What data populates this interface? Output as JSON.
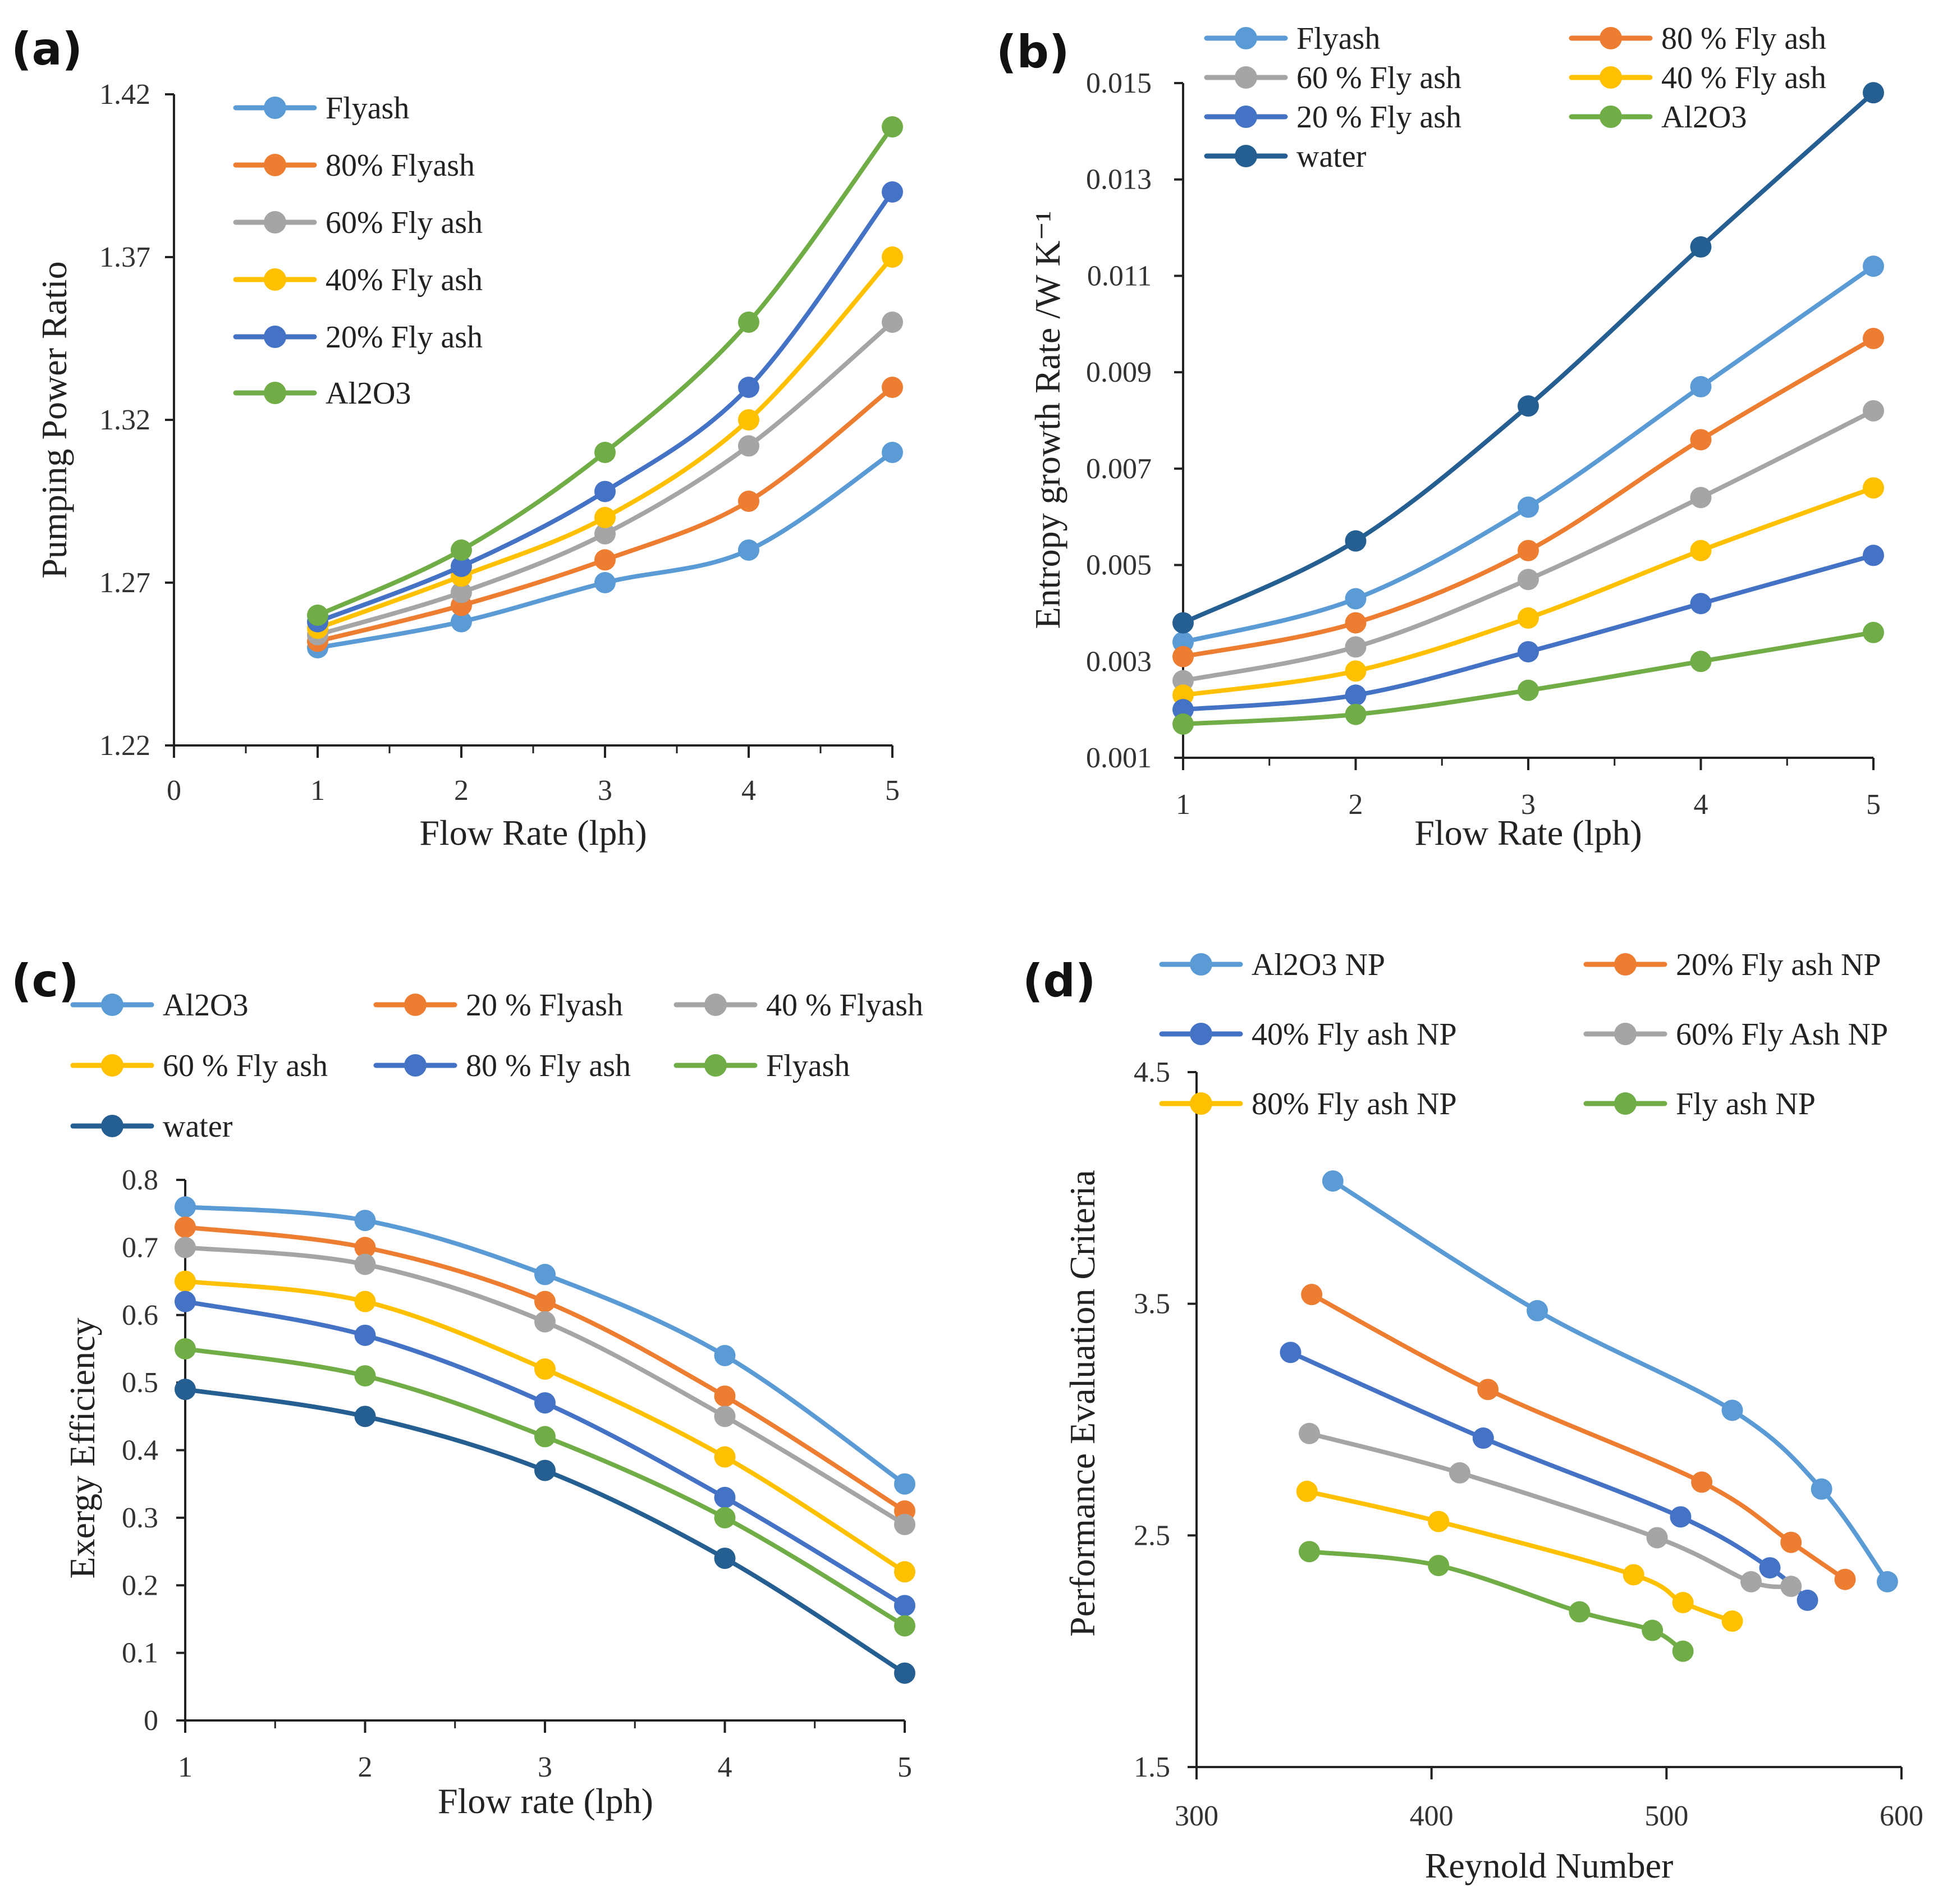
{
  "figure": {
    "colors": {
      "light_blue": "#5B9BD5",
      "orange": "#ED7D31",
      "gray": "#A5A5A5",
      "yellow": "#FFC000",
      "blue": "#4472C4",
      "green": "#70AD47",
      "dark_blue": "#255E91"
    }
  },
  "chart_data": [
    {
      "type": "line",
      "panel_label": "(a)",
      "xlabel": "Flow Rate (lph)",
      "ylabel": "Pumping Power Ratio",
      "xlim": [
        0,
        5
      ],
      "ylim": [
        1.22,
        1.42
      ],
      "x_ticks": [
        "0",
        "1",
        "2",
        "3",
        "4",
        "5"
      ],
      "y_ticks": [
        "1.42",
        "1.37",
        "1.32",
        "1.27",
        "1.22"
      ],
      "legend_position": "top-left",
      "x": [
        1,
        2,
        3,
        4,
        5
      ],
      "series": [
        {
          "name": "Flyash",
          "color": "#5B9BD5",
          "values": [
            1.25,
            1.258,
            1.27,
            1.28,
            1.31
          ]
        },
        {
          "name": "80% Flyash",
          "color": "#ED7D31",
          "values": [
            1.252,
            1.263,
            1.277,
            1.295,
            1.33
          ]
        },
        {
          "name": "60% Fly ash",
          "color": "#A5A5A5",
          "values": [
            1.254,
            1.267,
            1.285,
            1.312,
            1.35
          ]
        },
        {
          "name": "40% Fly ash",
          "color": "#FFC000",
          "values": [
            1.256,
            1.272,
            1.29,
            1.32,
            1.37
          ]
        },
        {
          "name": "20% Fly ash",
          "color": "#4472C4",
          "values": [
            1.258,
            1.275,
            1.298,
            1.33,
            1.39
          ]
        },
        {
          "name": "Al2O3",
          "color": "#70AD47",
          "values": [
            1.26,
            1.28,
            1.31,
            1.35,
            1.41
          ]
        }
      ]
    },
    {
      "type": "line",
      "panel_label": "(b)",
      "xlabel": "Flow Rate (lph)",
      "ylabel": "Entropy growth Rate /W K⁻¹",
      "xlim": [
        1,
        5
      ],
      "ylim": [
        0.001,
        0.015
      ],
      "x_ticks": [
        "1",
        "2",
        "3",
        "4",
        "5"
      ],
      "y_ticks": [
        "0.015",
        "0.013",
        "0.011",
        "0.009",
        "0.007",
        "0.005",
        "0.003",
        "0.001"
      ],
      "legend_position": "top",
      "x": [
        1,
        2,
        3,
        4,
        5
      ],
      "series": [
        {
          "name": "Flyash",
          "color": "#5B9BD5",
          "values": [
            0.0034,
            0.0043,
            0.0062,
            0.0087,
            0.0112
          ]
        },
        {
          "name": "80 % Fly ash",
          "color": "#ED7D31",
          "values": [
            0.0031,
            0.0038,
            0.0053,
            0.0076,
            0.0097
          ]
        },
        {
          "name": "60 % Fly ash",
          "color": "#A5A5A5",
          "values": [
            0.0026,
            0.0033,
            0.0047,
            0.0064,
            0.0082
          ]
        },
        {
          "name": "40 % Fly ash",
          "color": "#FFC000",
          "values": [
            0.0023,
            0.0028,
            0.0039,
            0.0053,
            0.0066
          ]
        },
        {
          "name": "20 % Fly ash",
          "color": "#4472C4",
          "values": [
            0.002,
            0.0023,
            0.0032,
            0.0042,
            0.0052
          ]
        },
        {
          "name": "Al2O3",
          "color": "#70AD47",
          "values": [
            0.0017,
            0.0019,
            0.0024,
            0.003,
            0.0036
          ]
        },
        {
          "name": "water",
          "color": "#255E91",
          "values": [
            0.0038,
            0.0055,
            0.0083,
            0.0116,
            0.0148
          ]
        }
      ]
    },
    {
      "type": "line",
      "panel_label": "(c)",
      "xlabel": "Flow rate (lph)",
      "ylabel": "Exergy Efficiency",
      "xlim": [
        1,
        5
      ],
      "ylim": [
        0,
        0.8
      ],
      "x_ticks": [
        "1",
        "2",
        "3",
        "4",
        "5"
      ],
      "y_ticks": [
        "0.8",
        "0.7",
        "0.6",
        "0.5",
        "0.4",
        "0.3",
        "0.2",
        "0.1",
        "0"
      ],
      "legend_position": "top",
      "x": [
        1,
        2,
        3,
        4,
        5
      ],
      "series": [
        {
          "name": "Al2O3",
          "color": "#5B9BD5",
          "values": [
            0.76,
            0.74,
            0.66,
            0.54,
            0.35
          ]
        },
        {
          "name": "20 % Flyash",
          "color": "#ED7D31",
          "values": [
            0.73,
            0.7,
            0.62,
            0.48,
            0.31
          ]
        },
        {
          "name": "40 % Flyash",
          "color": "#A5A5A5",
          "values": [
            0.7,
            0.675,
            0.59,
            0.45,
            0.29
          ]
        },
        {
          "name": "60 % Fly ash",
          "color": "#FFC000",
          "values": [
            0.65,
            0.62,
            0.52,
            0.39,
            0.22
          ]
        },
        {
          "name": "80 % Fly ash",
          "color": "#4472C4",
          "values": [
            0.62,
            0.57,
            0.47,
            0.33,
            0.17
          ]
        },
        {
          "name": "Flyash",
          "color": "#70AD47",
          "values": [
            0.55,
            0.51,
            0.42,
            0.3,
            0.14
          ]
        },
        {
          "name": "water",
          "color": "#255E91",
          "values": [
            0.49,
            0.45,
            0.37,
            0.24,
            0.07
          ]
        }
      ]
    },
    {
      "type": "line",
      "panel_label": "(d)",
      "xlabel": "Reynold Number",
      "ylabel": "Performance Evaluation Criteria",
      "xlim": [
        300,
        600
      ],
      "ylim": [
        1.5,
        4.5
      ],
      "x_ticks": [
        "300",
        "400",
        "500",
        "600"
      ],
      "y_ticks": [
        "4.5",
        "3.5",
        "2.5",
        "1.5"
      ],
      "legend_position": "top",
      "series": [
        {
          "name": "Al2O3 NP",
          "color": "#5B9BD5",
          "x": [
            358,
            445,
            528,
            566,
            594
          ],
          "values": [
            4.03,
            3.47,
            3.04,
            2.7,
            2.3
          ]
        },
        {
          "name": "20% Fly ash NP",
          "color": "#ED7D31",
          "x": [
            349,
            424,
            515,
            553,
            576
          ],
          "values": [
            3.54,
            3.13,
            2.73,
            2.47,
            2.31
          ]
        },
        {
          "name": "40% Fly ash NP",
          "color": "#4472C4",
          "x": [
            340,
            422,
            506,
            544,
            560
          ],
          "values": [
            3.29,
            2.92,
            2.58,
            2.36,
            2.22
          ]
        },
        {
          "name": "60% Fly Ash NP",
          "color": "#A5A5A5",
          "x": [
            348,
            412,
            496,
            536,
            553
          ],
          "values": [
            2.94,
            2.77,
            2.49,
            2.3,
            2.28
          ]
        },
        {
          "name": "80% Fly ash NP",
          "color": "#FFC000",
          "x": [
            347,
            403,
            486,
            507,
            528
          ],
          "values": [
            2.69,
            2.56,
            2.33,
            2.21,
            2.13
          ]
        },
        {
          "name": "Fly ash NP",
          "color": "#70AD47",
          "x": [
            348,
            403,
            463,
            494,
            507
          ],
          "values": [
            2.43,
            2.37,
            2.17,
            2.09,
            2.0
          ]
        }
      ]
    }
  ]
}
